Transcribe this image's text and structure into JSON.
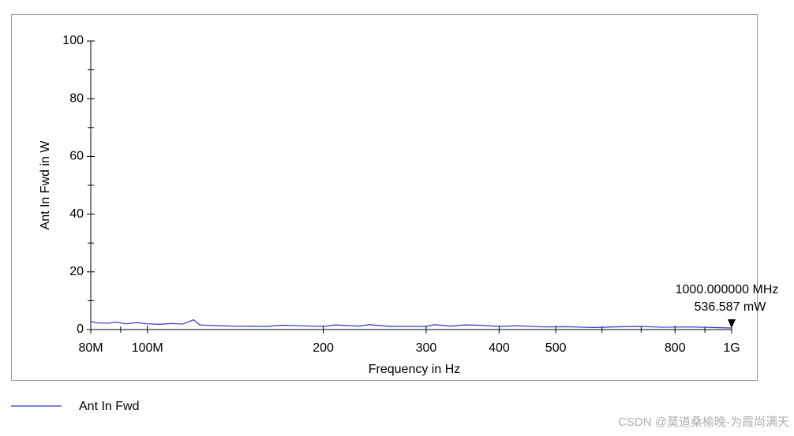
{
  "chart_data": {
    "type": "line",
    "xlabel": "Frequency in Hz",
    "ylabel": "Ant In Fwd in W",
    "xscale": "log",
    "xlim": [
      80000000,
      1000000000
    ],
    "xticks": [
      {
        "value": 80000000,
        "label": "80M"
      },
      {
        "value": 100000000,
        "label": "100M"
      },
      {
        "value": 200000000,
        "label": "200"
      },
      {
        "value": 300000000,
        "label": "300"
      },
      {
        "value": 400000000,
        "label": "400"
      },
      {
        "value": 500000000,
        "label": "500"
      },
      {
        "value": 800000000,
        "label": "800"
      },
      {
        "value": 1000000000,
        "label": "1G"
      }
    ],
    "xminorticks": [
      90000000,
      600000000,
      700000000,
      900000000
    ],
    "ylim": [
      0,
      100
    ],
    "yticks": [
      0,
      20,
      40,
      60,
      80,
      100
    ],
    "yminorticks": [
      10,
      30,
      50,
      70,
      90
    ],
    "x": [
      80000000,
      82000000,
      86000000,
      88000000,
      92000000,
      96000000,
      100000000,
      105000000,
      110000000,
      115000000,
      120000000,
      123000000,
      130000000,
      140000000,
      160000000,
      170000000,
      200000000,
      210000000,
      230000000,
      240000000,
      260000000,
      300000000,
      310000000,
      330000000,
      350000000,
      370000000,
      400000000,
      430000000,
      480000000,
      520000000,
      580000000,
      650000000,
      700000000,
      760000000,
      850000000,
      1000000000
    ],
    "series": [
      {
        "name": "Ant In Fwd",
        "color": "#3333cc",
        "values": [
          2.8,
          2.3,
          2.2,
          2.6,
          2.0,
          2.4,
          2.0,
          1.8,
          2.1,
          1.9,
          3.4,
          1.6,
          1.4,
          1.2,
          1.1,
          1.5,
          1.1,
          1.6,
          1.2,
          1.7,
          1.1,
          1.1,
          1.7,
          1.2,
          1.6,
          1.5,
          1.1,
          1.3,
          0.9,
          1.0,
          0.7,
          1.0,
          1.1,
          0.8,
          0.9,
          0.54
        ]
      }
    ],
    "marker": {
      "x": 1000000000,
      "y": 0.536587,
      "label_x": "1000.000000 MHz",
      "label_y": "536.587 mW"
    }
  },
  "watermark": "CSDN @莫道桑榆晚-为霞尚满天"
}
